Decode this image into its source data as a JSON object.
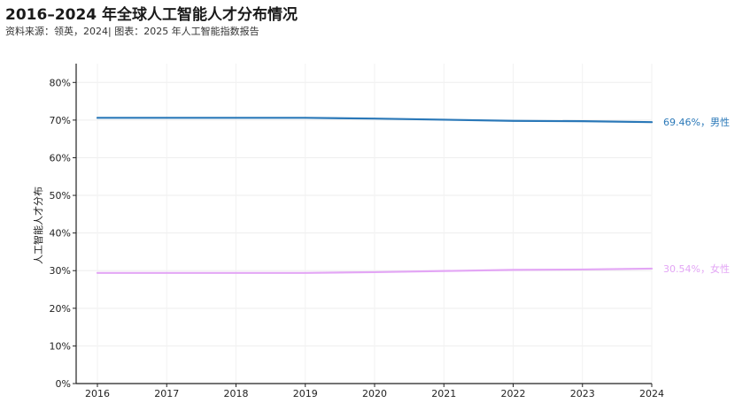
{
  "title": "2016–2024 年全球人工智能人才分布情况",
  "subtitle": "资料来源：领英，2024| 图表：2025 年人工智能指数报告",
  "chart_data": {
    "type": "line",
    "title": "2016–2024 年全球人工智能人才分布情况",
    "subtitle": "资料来源：领英，2024| 图表：2025 年人工智能指数报告",
    "ylabel": "人工智能人才分布",
    "xlabel": "",
    "x": [
      2016,
      2017,
      2018,
      2019,
      2020,
      2021,
      2022,
      2023,
      2024
    ],
    "x_tick_labels": [
      "2016",
      "2017",
      "2018",
      "2019",
      "2020",
      "2021",
      "2022",
      "2023",
      "2024"
    ],
    "ylim": [
      0,
      85
    ],
    "y_ticks": [
      0,
      10,
      20,
      30,
      40,
      50,
      60,
      70,
      80
    ],
    "y_tick_labels": [
      "0%",
      "10%",
      "20%",
      "30%",
      "40%",
      "50%",
      "60%",
      "70%",
      "80%"
    ],
    "grid": true,
    "series": [
      {
        "name": "男性",
        "color": "#2a78b8",
        "values": [
          70.6,
          70.6,
          70.6,
          70.6,
          70.4,
          70.1,
          69.8,
          69.7,
          69.46
        ],
        "end_label": "69.46%，男性"
      },
      {
        "name": "女性",
        "color": "#e3a6f5",
        "values": [
          29.4,
          29.4,
          29.4,
          29.4,
          29.6,
          29.9,
          30.2,
          30.3,
          30.54
        ],
        "end_label": "30.54%，女性"
      }
    ]
  }
}
